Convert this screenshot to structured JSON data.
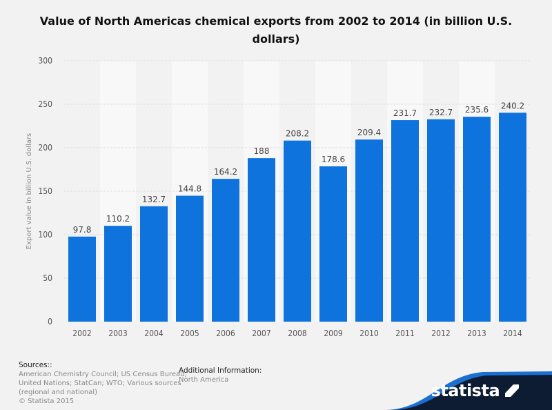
{
  "chart_data": {
    "type": "bar",
    "title": "Value of North Americas chemical exports from 2002 to 2014 (in billion U.S. dollars)",
    "xlabel": "",
    "ylabel": "Export value in billion U.S. dollars",
    "categories": [
      "2002",
      "2003",
      "2004",
      "2005",
      "2006",
      "2007",
      "2008",
      "2009",
      "2010",
      "2011",
      "2012",
      "2013",
      "2014"
    ],
    "values": [
      97.8,
      110.2,
      132.7,
      144.8,
      164.2,
      188,
      208.2,
      178.6,
      209.4,
      231.7,
      232.7,
      235.6,
      240.2
    ],
    "data_labels": [
      "97.8",
      "110.2",
      "132.7",
      "144.8",
      "164.2",
      "188",
      "208.2",
      "178.6",
      "209.4",
      "231.7",
      "232.7",
      "235.6",
      "240.2"
    ],
    "ylim": [
      0,
      300
    ],
    "yticks": [
      0,
      50,
      100,
      150,
      200,
      250,
      300
    ],
    "grid": true,
    "bar_color": "#0f73de"
  },
  "footer": {
    "sources_heading": "Sources::",
    "sources_lines": [
      "American Chemistry Council; US Census Bureau;",
      "United Nations; StatCan; WTO; Various sources",
      "(regional and national)",
      "© Statista 2015"
    ],
    "additional_heading": "Additional Information:",
    "additional_text": "North America",
    "logo": "statista"
  }
}
